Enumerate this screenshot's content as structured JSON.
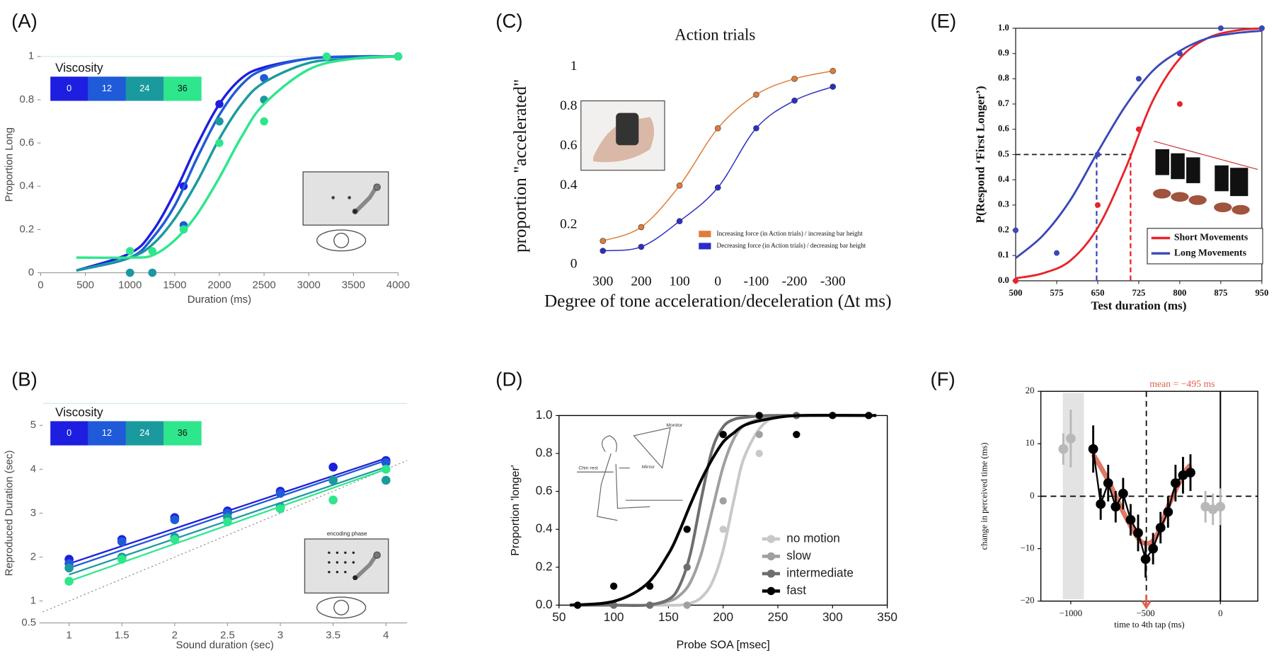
{
  "chart_data": [
    {
      "type": "scatter",
      "panel_label": "(A)",
      "xlabel": "Duration (ms)",
      "ylabel": "Proportion Long",
      "legend_title": "Viscosity",
      "legend": "upper left",
      "xlim": [
        0,
        4000
      ],
      "xticks": [
        0,
        500,
        1000,
        1500,
        2000,
        2500,
        3000,
        3500,
        4000
      ],
      "ylim": [
        0,
        1
      ],
      "yticks": [
        0,
        0.2,
        0.4,
        0.6,
        0.8,
        1
      ],
      "fit_x": [
        400,
        1000,
        1250,
        1500,
        1750,
        2000,
        2250,
        2500,
        3000,
        3500,
        4000
      ],
      "series": [
        {
          "name": "0",
          "color": "#1e1ee0",
          "x": [
            1000,
            1250,
            1600,
            2000,
            2500,
            4000
          ],
          "values": [
            0,
            0,
            0.4,
            0.78,
            0.9,
            1
          ],
          "fit": [
            0.01,
            0.09,
            0.19,
            0.37,
            0.59,
            0.78,
            0.9,
            0.95,
            0.99,
            1,
            1
          ]
        },
        {
          "name": "12",
          "color": "#1f5ad8",
          "x": [
            1000,
            1250,
            1600,
            2000,
            2500,
            4000
          ],
          "values": [
            0,
            0,
            0.22,
            0.7,
            0.9,
            1
          ],
          "fit": [
            0.01,
            0.07,
            0.16,
            0.31,
            0.53,
            0.73,
            0.87,
            0.94,
            0.99,
            1,
            1
          ]
        },
        {
          "name": "24",
          "color": "#1a9a9e",
          "x": [
            1000,
            1250,
            1600,
            2000,
            2500,
            4000
          ],
          "values": [
            0,
            0,
            0.2,
            0.7,
            0.8,
            1
          ],
          "fit": [
            0.01,
            0.07,
            0.13,
            0.25,
            0.42,
            0.62,
            0.78,
            0.88,
            0.97,
            0.99,
            1
          ]
        },
        {
          "name": "36",
          "color": "#2ee68c",
          "x": [
            1000,
            1250,
            1600,
            2000,
            2500,
            3200,
            4000
          ],
          "values": [
            0.1,
            0.1,
            0.2,
            0.6,
            0.7,
            1,
            1
          ],
          "fit": [
            0.07,
            0.07,
            0.08,
            0.15,
            0.27,
            0.44,
            0.63,
            0.78,
            0.94,
            0.99,
            1
          ]
        }
      ]
    },
    {
      "type": "scatter",
      "panel_label": "(B)",
      "xlabel": "Sound duration (sec)",
      "ylabel": "Reproduced Duration (sec)",
      "legend_title": "Viscosity",
      "legend": "upper left",
      "xlim": [
        0.75,
        4.2
      ],
      "xticks": [
        1,
        1.5,
        2,
        2.5,
        3,
        3.5,
        4
      ],
      "ylim": [
        0.5,
        5.5
      ],
      "yticks": [
        0.5,
        1,
        2,
        3,
        4,
        5
      ],
      "identity_line": true,
      "fit_x": [
        1,
        4
      ],
      "series": [
        {
          "name": "0",
          "color": "#1e1ee0",
          "x": [
            1,
            1.5,
            2,
            2.5,
            3,
            3.5,
            4
          ],
          "values": [
            1.95,
            2.4,
            2.9,
            3.05,
            3.5,
            4.05,
            4.2
          ],
          "fit": [
            1.85,
            4.25
          ]
        },
        {
          "name": "12",
          "color": "#1f5ad8",
          "x": [
            1,
            1.5,
            2,
            2.5,
            3,
            3.5,
            4
          ],
          "values": [
            1.85,
            2.35,
            2.85,
            3.0,
            3.45,
            3.75,
            4.15
          ],
          "fit": [
            1.75,
            4.2
          ]
        },
        {
          "name": "24",
          "color": "#1a9a9e",
          "x": [
            1,
            1.5,
            2,
            2.5,
            3,
            3.5,
            4
          ],
          "values": [
            1.75,
            2.0,
            2.45,
            2.9,
            3.15,
            3.75,
            3.75
          ],
          "fit": [
            1.6,
            4.05
          ]
        },
        {
          "name": "36",
          "color": "#2ee68c",
          "x": [
            1,
            1.5,
            2,
            2.5,
            3,
            3.5,
            4
          ],
          "values": [
            1.45,
            1.95,
            2.4,
            2.8,
            3.1,
            3.3,
            4.0
          ],
          "fit": [
            1.45,
            4.0
          ]
        }
      ]
    },
    {
      "type": "line",
      "panel_label": "(C)",
      "title": "Action trials",
      "xlabel": "Degree of tone acceleration/deceleration (Δt ms)",
      "ylabel": "proportion \"accelerated\"",
      "legend": "lower right",
      "categories": [
        "300",
        "200",
        "100",
        "0",
        "-100",
        "-200",
        "-300"
      ],
      "ylim": [
        0,
        1
      ],
      "yticks": [
        0,
        0.2,
        0.4,
        0.6,
        0.8,
        1
      ],
      "series": [
        {
          "name": "Increasing force (in Action trials) / increasing bar height",
          "color": "#e07b39",
          "values": [
            0.12,
            0.19,
            0.4,
            0.69,
            0.86,
            0.94,
            0.98
          ]
        },
        {
          "name": "Decreasing force (in Action trials) / decreasing bar height",
          "color": "#2c2cc8",
          "values": [
            0.07,
            0.09,
            0.22,
            0.39,
            0.69,
            0.83,
            0.9
          ]
        }
      ]
    },
    {
      "type": "scatter",
      "panel_label": "(D)",
      "xlabel": "Probe SOA [msec]",
      "ylabel": "Proportion 'longer'",
      "legend": "lower right",
      "xlim": [
        50,
        350
      ],
      "xticks": [
        50,
        100,
        150,
        200,
        250,
        300,
        350
      ],
      "ylim": [
        0,
        1
      ],
      "yticks": [
        {
          "value": 0,
          "label": "0.0"
        },
        {
          "value": 0.2,
          "label": "0.2"
        },
        {
          "value": 0.4,
          "label": "0.4"
        },
        {
          "value": 0.6,
          "label": "0.6"
        },
        {
          "value": 0.8,
          "label": "0.8"
        },
        {
          "value": 1,
          "label": "1.0"
        }
      ],
      "fit_x": [
        60,
        100,
        130,
        150,
        160,
        170,
        180,
        190,
        200,
        210,
        220,
        240,
        270,
        340
      ],
      "series": [
        {
          "name": "no motion",
          "color": "#c8c8c8",
          "x": [
            67,
            100,
            133,
            167,
            200,
            233,
            267,
            300,
            333
          ],
          "values": [
            0,
            0,
            0,
            0,
            0.4,
            0.8,
            1,
            1,
            1
          ],
          "fit": [
            0,
            0,
            0,
            0,
            0,
            0.01,
            0.04,
            0.12,
            0.29,
            0.56,
            0.79,
            0.97,
            1,
            1
          ]
        },
        {
          "name": "slow",
          "color": "#a0a0a0",
          "x": [
            67,
            100,
            133,
            167,
            200,
            233,
            267,
            300,
            333
          ],
          "values": [
            0,
            0,
            0,
            0,
            0.55,
            0.9,
            1,
            1,
            1
          ],
          "fit": [
            0,
            0,
            0,
            0.02,
            0.05,
            0.12,
            0.27,
            0.5,
            0.73,
            0.88,
            0.95,
            0.99,
            1,
            1
          ]
        },
        {
          "name": "intermediate",
          "color": "#6e6e6e",
          "x": [
            67,
            100,
            133,
            167,
            200,
            233,
            267,
            300,
            333
          ],
          "values": [
            0,
            0,
            0,
            0.2,
            0.9,
            1,
            1,
            1,
            1
          ],
          "fit": [
            0,
            0,
            0,
            0.03,
            0.1,
            0.27,
            0.56,
            0.82,
            0.94,
            0.98,
            0.99,
            1,
            1,
            1
          ]
        },
        {
          "name": "fast",
          "color": "#000000",
          "x": [
            67,
            100,
            133,
            167,
            200,
            233,
            267,
            300,
            333
          ],
          "values": [
            0,
            0.1,
            0.1,
            0.4,
            0.9,
            1,
            0.9,
            1,
            1
          ],
          "fit": [
            0,
            0.02,
            0.11,
            0.27,
            0.39,
            0.53,
            0.66,
            0.77,
            0.86,
            0.91,
            0.95,
            0.98,
            1,
            1
          ]
        }
      ]
    },
    {
      "type": "scatter",
      "panel_label": "(E)",
      "xlabel": "Test duration (ms)",
      "ylabel": "P(Respond ‘First Longer’)",
      "legend": "lower right",
      "xlim": [
        500,
        950
      ],
      "xticks": [
        500,
        575,
        650,
        725,
        800,
        875,
        950
      ],
      "ylim": [
        0,
        1
      ],
      "yticks": [
        {
          "value": 0,
          "label": "0.0"
        },
        {
          "value": 0.1,
          "label": "0.1"
        },
        {
          "value": 0.2,
          "label": "0.2"
        },
        {
          "value": 0.3,
          "label": "0.3"
        },
        {
          "value": 0.4,
          "label": "0.4"
        },
        {
          "value": 0.5,
          "label": "0.5"
        },
        {
          "value": 0.6,
          "label": "0.6"
        },
        {
          "value": 0.7,
          "label": "0.7"
        },
        {
          "value": 0.8,
          "label": "0.8"
        },
        {
          "value": 0.9,
          "label": "0.9"
        },
        {
          "value": 1,
          "label": "1.0"
        }
      ],
      "pse_level": 0.5,
      "fit_x": [
        500,
        550,
        600,
        650,
        700,
        750,
        800,
        850,
        900,
        950
      ],
      "series": [
        {
          "name": "Short Movements",
          "color": "#e8242a",
          "x": [
            500,
            650,
            725,
            800,
            950
          ],
          "values": [
            0,
            0.3,
            0.6,
            0.7,
            1
          ],
          "fit": [
            0.01,
            0.03,
            0.08,
            0.21,
            0.44,
            0.71,
            0.88,
            0.96,
            0.99,
            1
          ],
          "pse": 710
        },
        {
          "name": "Long Movements",
          "color": "#3a48b8",
          "x": [
            500,
            575,
            650,
            725,
            800,
            875,
            950
          ],
          "values": [
            0.2,
            0.11,
            0.5,
            0.8,
            0.9,
            1,
            1
          ],
          "fit": [
            0.09,
            0.18,
            0.32,
            0.51,
            0.69,
            0.83,
            0.91,
            0.96,
            0.98,
            0.99
          ],
          "pse": 648
        }
      ]
    },
    {
      "type": "scatter",
      "panel_label": "(F)",
      "xlabel": "time to 4th tap (ms)",
      "ylabel": "change in perceived time (ms)",
      "annotation": "mean = −495 ms",
      "mean": -495,
      "xlim": [
        -1200,
        250
      ],
      "xticks": [
        {
          "value": -1000,
          "label": "−1000"
        },
        {
          "value": -500,
          "label": "−500"
        },
        0
      ],
      "ylim": [
        -20,
        20
      ],
      "yticks": [
        {
          "value": -20,
          "label": "−20"
        },
        {
          "value": -10,
          "label": "−10"
        },
        0,
        10,
        20
      ],
      "fit_x": [
        -850,
        -750,
        -650,
        -550,
        -500,
        -450,
        -400,
        -350,
        -250,
        -200
      ],
      "series": [
        {
          "color": "#000000",
          "connect": true,
          "x": [
            -850,
            -800,
            -750,
            -700,
            -650,
            -600,
            -550,
            -500,
            -450,
            -400,
            -350,
            -300,
            -250,
            -200
          ],
          "values": [
            9,
            -1.5,
            2.5,
            -2,
            0.5,
            -4.5,
            -7,
            -12,
            -10,
            -6,
            -3,
            2.5,
            4,
            4.5
          ],
          "errors": [
            4.5,
            3,
            3.5,
            3,
            3,
            3,
            3.5,
            3.5,
            3,
            3,
            3,
            3.5,
            3.5,
            3.5
          ],
          "fit": [
            8,
            3,
            -3,
            -8,
            -9,
            -8.5,
            -6,
            -2,
            4,
            6
          ],
          "fit_color": "#d9604a"
        },
        {
          "color": "#b8b8b8",
          "x": [
            -1050,
            -1000,
            -100,
            -50,
            0
          ],
          "values": [
            9,
            11,
            -2,
            -2.5,
            -2
          ],
          "errors": [
            3,
            5.5,
            3,
            3,
            3.5
          ]
        }
      ]
    }
  ]
}
